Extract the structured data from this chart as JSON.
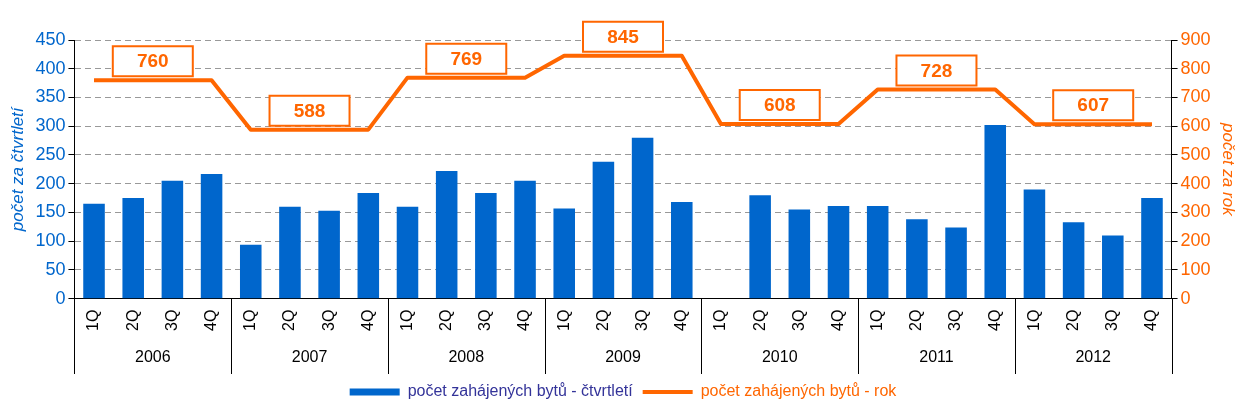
{
  "chart_data": {
    "type": "bar",
    "ylabel": "počet za čtvrtletí",
    "y2label": "počet za rok",
    "categories": [
      "1Q",
      "2Q",
      "3Q",
      "4Q",
      "1Q",
      "2Q",
      "3Q",
      "4Q",
      "1Q",
      "2Q",
      "3Q",
      "4Q",
      "1Q",
      "2Q",
      "3Q",
      "4Q",
      "1Q",
      "2Q",
      "3Q",
      "4Q",
      "1Q",
      "2Q",
      "3Q",
      "4Q",
      "1Q",
      "2Q",
      "3Q",
      "4Q"
    ],
    "annotations": [
      "2006",
      "2007",
      "2008",
      "2009",
      "2010",
      "2011",
      "2012"
    ],
    "series": [
      {
        "name": "počet zahájených bytů - čtvrtletí",
        "color": "#0066cc",
        "values": [
          165,
          175,
          205,
          217,
          94,
          160,
          153,
          184,
          160,
          222,
          184,
          205,
          157,
          238,
          280,
          168,
          null,
          180,
          155,
          161,
          161,
          138,
          124,
          302,
          190,
          133,
          110,
          175
        ]
      },
      {
        "name": "počet zahájených bytů - rok",
        "type": "line",
        "axis": "y2",
        "color": "#ff6600",
        "values": [
          760,
          760,
          760,
          760,
          588,
          588,
          588,
          588,
          769,
          769,
          769,
          769,
          845,
          845,
          845,
          845,
          608,
          608,
          608,
          608,
          728,
          728,
          728,
          728,
          607,
          607,
          607,
          607
        ],
        "value_labels": [
          null,
          "760",
          null,
          null,
          null,
          "588",
          null,
          null,
          null,
          "769",
          null,
          null,
          null,
          "845",
          null,
          null,
          null,
          "608",
          null,
          null,
          null,
          "728",
          null,
          null,
          null,
          "607",
          null,
          null
        ]
      }
    ],
    "ylim": [
      0,
      450
    ],
    "yticks": [
      0,
      50,
      100,
      150,
      200,
      250,
      300,
      350,
      400,
      450
    ],
    "y2lim": [
      0,
      900
    ],
    "y2ticks": [
      0,
      100,
      200,
      300,
      400,
      500,
      600,
      700,
      800,
      900
    ],
    "grid": "y",
    "legend": "bottom"
  }
}
